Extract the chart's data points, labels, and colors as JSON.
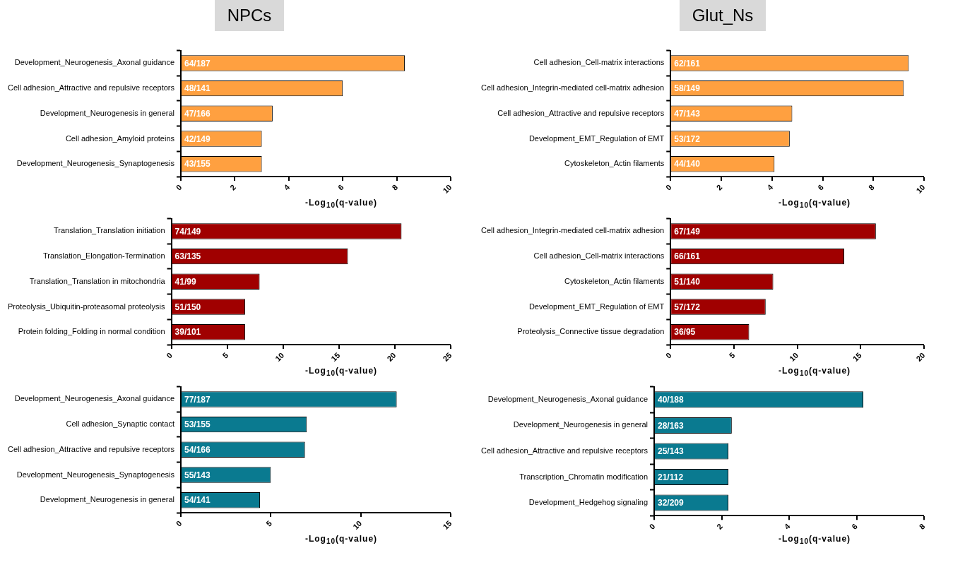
{
  "chart_data": [
    {
      "type": "bar",
      "orientation": "horizontal",
      "title": "NPCs",
      "xlabel": "-Log$_{10}$(q-value)",
      "categories": [
        "Development_Neurogenesis_Axonal guidance",
        "Cell adhesion_Attractive and repulsive receptors",
        "Development_Neurogenesis in general",
        "Cell adhesion_Amyloid proteins",
        "Development_Neurogenesis_Synaptogenesis"
      ],
      "values": [
        8.3,
        6.0,
        3.4,
        3.0,
        3.0
      ],
      "value_labels": [
        "64/187",
        "48/141",
        "47/166",
        "42/149",
        "43/155"
      ],
      "color": "#ffa040",
      "xlim": [
        0,
        10
      ],
      "xticks": [
        0,
        2,
        4,
        6,
        8,
        10
      ]
    },
    {
      "type": "bar",
      "orientation": "horizontal",
      "title": "Glut_Ns",
      "xlabel": "-Log$_{10}$(q-value)",
      "categories": [
        "Cell adhesion_Cell-matrix interactions",
        "Cell adhesion_Integrin-mediated cell-matrix adhesion",
        "Cell adhesion_Attractive and repulsive receptors",
        "Development_EMT_Regulation of EMT",
        "Cytoskeleton_Actin filaments"
      ],
      "values": [
        9.4,
        9.2,
        4.8,
        4.7,
        4.1
      ],
      "value_labels": [
        "62/161",
        "58/149",
        "47/143",
        "53/172",
        "44/140"
      ],
      "color": "#ffa040",
      "xlim": [
        0,
        10
      ],
      "xticks": [
        0,
        2,
        4,
        6,
        8,
        10
      ]
    },
    {
      "type": "bar",
      "orientation": "horizontal",
      "xlabel": "-Log$_{10}$(q-value)",
      "categories": [
        "Translation_Translation initiation",
        "Translation_Elongation-Termination",
        "Translation_Translation in mitochondria",
        "Proteolysis_Ubiquitin-proteasomal proteolysis",
        "Protein folding_Folding in normal condition"
      ],
      "values": [
        20.6,
        15.8,
        7.9,
        6.6,
        6.6
      ],
      "value_labels": [
        "74/149",
        "63/135",
        "41/99",
        "51/150",
        "39/101"
      ],
      "color": "#a00000",
      "xlim": [
        0,
        25
      ],
      "xticks": [
        0,
        5,
        10,
        15,
        20,
        25
      ]
    },
    {
      "type": "bar",
      "orientation": "horizontal",
      "xlabel": "-Log$_{10}$(q-value)",
      "categories": [
        "Cell adhesion_Integrin-mediated cell-matrix adhesion",
        "Cell adhesion_Cell-matrix interactions",
        "Cytoskeleton_Actin filaments",
        "Development_EMT_Regulation of EMT",
        "Proteolysis_Connective tissue degradation"
      ],
      "values": [
        16.2,
        13.7,
        8.1,
        7.5,
        6.2
      ],
      "value_labels": [
        "67/149",
        "66/161",
        "51/140",
        "57/172",
        "36/95"
      ],
      "color": "#a00000",
      "xlim": [
        0,
        20
      ],
      "xticks": [
        0,
        5,
        10,
        15,
        20
      ]
    },
    {
      "type": "bar",
      "orientation": "horizontal",
      "xlabel": "-Log$_{10}$(q-value)",
      "categories": [
        "Development_Neurogenesis_Axonal guidance",
        "Cell adhesion_Synaptic contact",
        "Cell adhesion_Attractive and repulsive receptors",
        "Development_Neurogenesis_Synaptogenesis",
        "Development_Neurogenesis in general"
      ],
      "values": [
        12.0,
        7.0,
        6.9,
        5.0,
        4.4
      ],
      "value_labels": [
        "77/187",
        "53/155",
        "54/166",
        "55/143",
        "54/141"
      ],
      "color": "#0a7a90",
      "xlim": [
        0,
        15
      ],
      "xticks": [
        0,
        5,
        10,
        15
      ]
    },
    {
      "type": "bar",
      "orientation": "horizontal",
      "xlabel": "-Log$_{10}$(q-value)",
      "categories": [
        "Development_Neurogenesis_Axonal guidance",
        "Development_Neurogenesis in general",
        "Cell adhesion_Attractive and repulsive receptors",
        "Transcription_Chromatin modification",
        "Development_Hedgehog signaling"
      ],
      "values": [
        6.2,
        2.3,
        2.2,
        2.2,
        2.2
      ],
      "value_labels": [
        "40/188",
        "28/163",
        "25/143",
        "21/112",
        "32/209"
      ],
      "color": "#0a7a90",
      "xlim": [
        0,
        8
      ],
      "xticks": [
        0,
        2,
        4,
        6,
        8
      ]
    }
  ]
}
